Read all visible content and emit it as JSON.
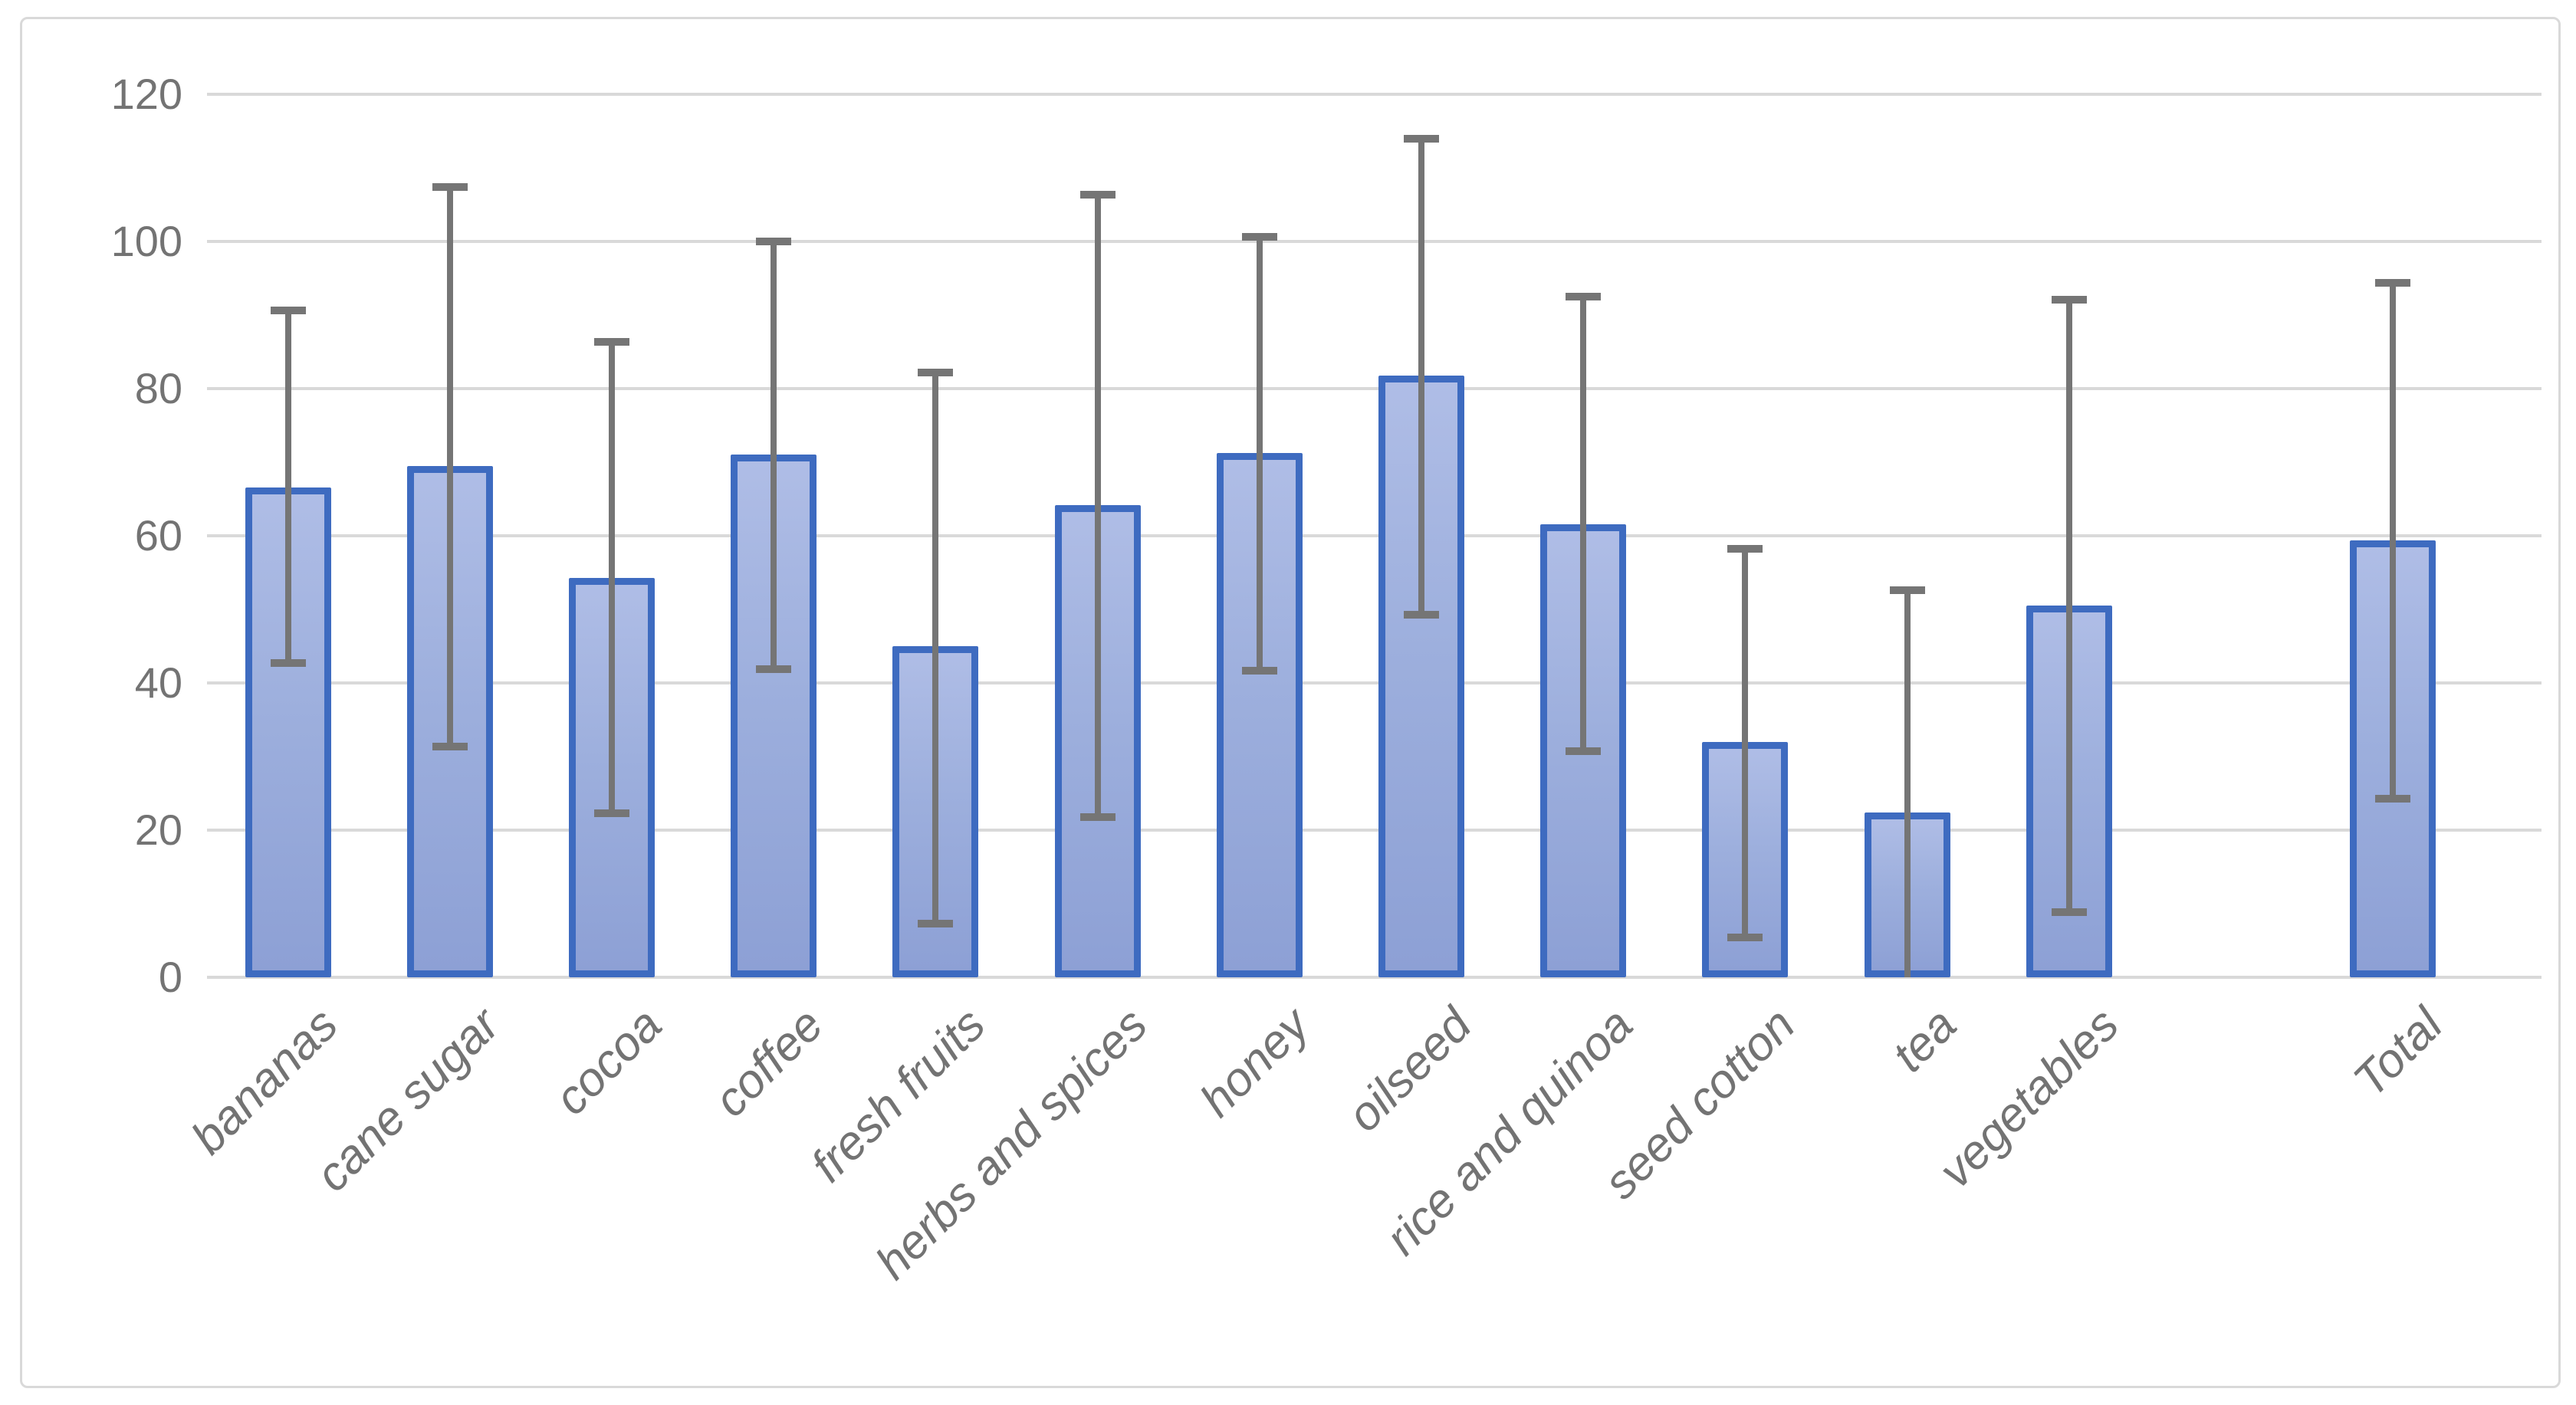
{
  "chart_data": {
    "type": "bar",
    "title": "",
    "xlabel": "",
    "ylabel": "",
    "ylim": [
      0,
      120
    ],
    "yticks": [
      0,
      20,
      40,
      60,
      80,
      100,
      120
    ],
    "grid": true,
    "legend": false,
    "categories": [
      "bananas",
      "cane sugar",
      "cocoa",
      "coffee",
      "fresh fruits",
      "herbs and spices",
      "honey",
      "oilseed",
      "rice and quinoa",
      "seed cotton",
      "tea",
      "vegetables",
      "Total"
    ],
    "values": [
      66.6,
      69.5,
      54.3,
      71.0,
      45.0,
      64.2,
      71.2,
      81.8,
      61.6,
      32.0,
      22.4,
      50.5,
      59.4
    ],
    "error_high": [
      90.9,
      107.7,
      86.7,
      100.3,
      82.5,
      106.7,
      100.9,
      114.3,
      92.8,
      58.5,
      52.9,
      92.4,
      94.7
    ],
    "error_low": [
      42.4,
      31.0,
      22.0,
      41.6,
      7.0,
      21.5,
      41.4,
      49.0,
      30.4,
      5.1,
      0,
      8.5,
      24.0
    ],
    "error_low_capped": [
      true,
      true,
      true,
      true,
      true,
      true,
      true,
      true,
      true,
      true,
      false,
      true,
      true
    ],
    "slots": [
      0,
      1,
      2,
      3,
      4,
      5,
      6,
      7,
      8,
      9,
      10,
      11,
      13
    ],
    "num_slots": 14,
    "layout_note": "empty category slot between vegetables and Total"
  },
  "colors": {
    "bar_fill_top": "#afbde6",
    "bar_fill_bottom": "#8da0d5",
    "bar_border": "#3e6bc0",
    "error_bar": "#757575",
    "gridline": "#d9d9d9",
    "axis_text": "#737373",
    "chart_border": "#d9d9d9",
    "background": "#ffffff"
  }
}
